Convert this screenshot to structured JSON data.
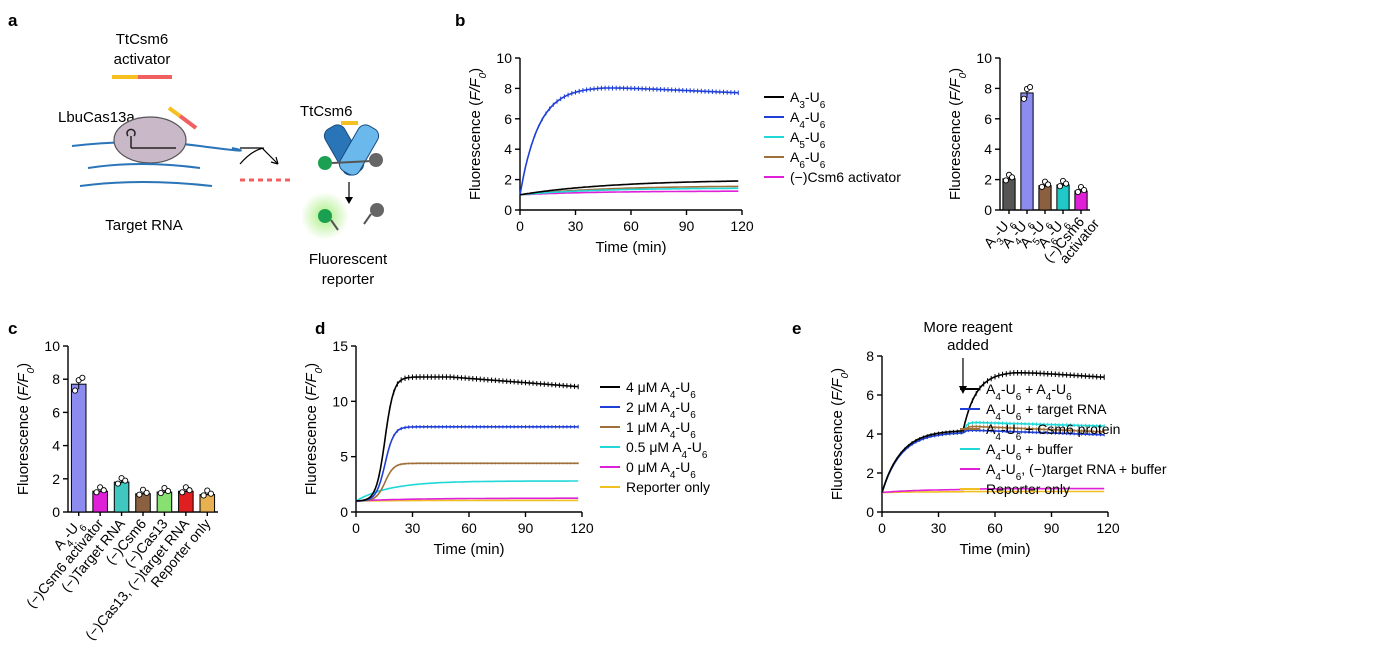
{
  "panel_letters": [
    "a",
    "b",
    "c",
    "d",
    "e"
  ],
  "schematic": {
    "activator_label_line1": "TtCsm6",
    "activator_label_line2": "activator",
    "cas13_label": "LbuCas13a",
    "csm6_label": "TtCsm6",
    "target_label": "Target RNA",
    "reporter_label_line1": "Fluorescent",
    "reporter_label_line2": "reporter"
  },
  "chart_data": [
    {
      "id": "b-line",
      "type": "line",
      "xlabel": "Time (min)",
      "ylabel": "Fluorescence (F/F0)",
      "xlim": [
        0,
        120
      ],
      "ylim": [
        0,
        10
      ],
      "xticks": [
        0,
        30,
        60,
        90,
        120
      ],
      "yticks": [
        0,
        2,
        4,
        6,
        8,
        10
      ],
      "series": [
        {
          "name": "A3-U6",
          "color": "#000000",
          "kind": "sat",
          "final": 2.0,
          "tau": 50
        },
        {
          "name": "A4-U6",
          "color": "#1f3fd6",
          "kind": "peak",
          "peak": 8.1,
          "final": 7.7,
          "tau": 10,
          "tpeak": 45
        },
        {
          "name": "A5-U6",
          "color": "#20d8d8",
          "kind": "sat",
          "final": 1.45,
          "tau": 40
        },
        {
          "name": "A6-U6",
          "color": "#a0703a",
          "kind": "sat",
          "final": 1.6,
          "tau": 45
        },
        {
          "name": "(−)Csm6 activator",
          "color": "#e020d8",
          "kind": "sat",
          "final": 1.25,
          "tau": 40
        }
      ]
    },
    {
      "id": "b-bar",
      "type": "bar",
      "ylabel": "Fluorescence (F/F0)",
      "ylim": [
        0,
        10
      ],
      "yticks": [
        0,
        2,
        4,
        6,
        8,
        10
      ],
      "categories": [
        "A3-U6",
        "A4-U6",
        "A5-U6",
        "A6-U6",
        "(−)Csm6 activator"
      ],
      "values": [
        2.05,
        7.7,
        1.6,
        1.65,
        1.25
      ],
      "colors": [
        "#555555",
        "#8c8cf0",
        "#8a6040",
        "#20c8c8",
        "#e020d8"
      ]
    },
    {
      "id": "c-bar",
      "type": "bar",
      "ylabel": "Fluorescence (F/F0)",
      "ylim": [
        0,
        10
      ],
      "yticks": [
        0,
        2,
        4,
        6,
        8,
        10
      ],
      "categories": [
        "A4-U6",
        "(−)Csm6 activator",
        "(−)Target RNA",
        "(−)Csm6",
        "(−)Cas13",
        "(−)Cas13, (−)target RNA",
        "Reporter only"
      ],
      "values": [
        7.7,
        1.25,
        1.8,
        1.1,
        1.2,
        1.25,
        1.05
      ],
      "colors": [
        "#8c8cf0",
        "#e020d8",
        "#40c8c0",
        "#8a6040",
        "#88e070",
        "#e02020",
        "#e8b050"
      ]
    },
    {
      "id": "d-line",
      "type": "line",
      "xlabel": "Time (min)",
      "ylabel": "Fluorescence (F/F0)",
      "xlim": [
        0,
        120
      ],
      "ylim": [
        0,
        15
      ],
      "xticks": [
        0,
        30,
        60,
        90,
        120
      ],
      "yticks": [
        0,
        5,
        10,
        15
      ],
      "series": [
        {
          "name": "4 μM A4-U6",
          "color": "#000000",
          "kind": "peak",
          "peak": 12.2,
          "final": 11.3,
          "tau": 14,
          "tpeak": 50,
          "sig": true
        },
        {
          "name": "2 μM A4-U6",
          "color": "#1f3fd6",
          "kind": "sat",
          "final": 7.7,
          "tau": 14,
          "sig": true
        },
        {
          "name": "1 μM A4-U6",
          "color": "#a0703a",
          "kind": "sat",
          "final": 4.4,
          "tau": 14,
          "sig": true
        },
        {
          "name": "0.5 μM A4-U6",
          "color": "#20d8d8",
          "kind": "sat",
          "final": 2.8,
          "tau": 18
        },
        {
          "name": "0 μM A4-U6",
          "color": "#e020d8",
          "kind": "sat",
          "final": 1.25,
          "tau": 30
        },
        {
          "name": "Reporter only",
          "color": "#f0c020",
          "kind": "sat",
          "final": 1.05,
          "tau": 30
        }
      ]
    },
    {
      "id": "e-line",
      "type": "line",
      "xlabel": "Time (min)",
      "ylabel": "Fluorescence (F/F0)",
      "xlim": [
        0,
        120
      ],
      "ylim": [
        0,
        8
      ],
      "xticks": [
        0,
        30,
        60,
        90,
        120
      ],
      "yticks": [
        0,
        2,
        4,
        6,
        8
      ],
      "annotation": {
        "line1": "More reagent",
        "line2": "added",
        "x": 43
      },
      "series": [
        {
          "name": "A4-U6 + A4-U6",
          "color": "#000000",
          "kind": "two",
          "p1": 4.2,
          "p2": 7.2,
          "final": 6.9
        },
        {
          "name": "A4-U6 + target RNA",
          "color": "#1f3fd6",
          "kind": "two",
          "p1": 4.1,
          "p2": 4.2,
          "final": 3.95
        },
        {
          "name": "A4-U6 + Csm6 protein",
          "color": "#a0703a",
          "kind": "two",
          "p1": 4.1,
          "p2": 4.4,
          "final": 4.1
        },
        {
          "name": "A4-U6 + buffer",
          "color": "#20d8d8",
          "kind": "two",
          "p1": 4.1,
          "p2": 4.6,
          "final": 4.4
        },
        {
          "name": "A4-U6, (−)target RNA + buffer",
          "color": "#e020d8",
          "kind": "flat",
          "final": 1.2
        },
        {
          "name": "Reporter only",
          "color": "#f0c020",
          "kind": "flat",
          "final": 1.05
        }
      ]
    }
  ]
}
